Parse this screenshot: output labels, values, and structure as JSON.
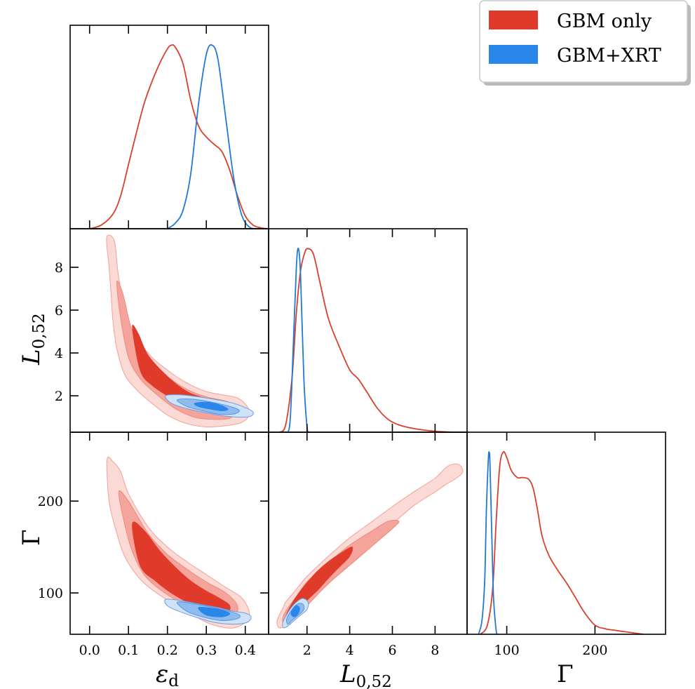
{
  "legend": [
    {
      "label": "GBM only",
      "color": "#e03a2a"
    },
    {
      "label": "GBM+XRT",
      "color": "#2a86e8"
    }
  ],
  "colors": {
    "red_lines": "#d8402c",
    "blue_lines": "#1f7ad8",
    "red_fill": [
      "#fbd9d4",
      "#f4a49a",
      "#e03a2a"
    ],
    "blue_fill": [
      "#d0e2f8",
      "#8fbcef",
      "#2a86e8"
    ]
  },
  "labels": {
    "eps_main": "ε",
    "eps_sub": "d",
    "L_main": "L",
    "L_sub": "0,52",
    "gamma": "Γ"
  },
  "chart_data": [
    {
      "id": "hist-eps",
      "type": "line",
      "xlim": [
        -0.05,
        0.46
      ],
      "xticks": [
        0.0,
        0.1,
        0.2,
        0.3,
        0.4
      ],
      "series": [
        {
          "name": "GBM only",
          "x": [
            0.0,
            0.03,
            0.06,
            0.08,
            0.1,
            0.12,
            0.14,
            0.16,
            0.18,
            0.2,
            0.21,
            0.22,
            0.24,
            0.26,
            0.28,
            0.3,
            0.32,
            0.34,
            0.36,
            0.38,
            0.4,
            0.42,
            0.44,
            0.46
          ],
          "y": [
            0.0,
            0.02,
            0.08,
            0.18,
            0.35,
            0.52,
            0.68,
            0.8,
            0.9,
            0.98,
            1.0,
            0.99,
            0.9,
            0.7,
            0.56,
            0.5,
            0.46,
            0.42,
            0.32,
            0.18,
            0.07,
            0.02,
            0.005,
            0.0
          ]
        },
        {
          "name": "GBM+XRT",
          "x": [
            0.2,
            0.22,
            0.24,
            0.26,
            0.28,
            0.3,
            0.315,
            0.33,
            0.35,
            0.37,
            0.39,
            0.41,
            0.43
          ],
          "y": [
            0.0,
            0.03,
            0.1,
            0.3,
            0.68,
            0.95,
            1.0,
            0.92,
            0.6,
            0.28,
            0.08,
            0.01,
            0.0
          ]
        }
      ]
    },
    {
      "id": "hist-L",
      "type": "line",
      "xlim": [
        0.2,
        9.5
      ],
      "xticks": [
        2,
        4,
        6,
        8
      ],
      "series": [
        {
          "name": "GBM only",
          "x": [
            0.7,
            1.0,
            1.3,
            1.5,
            1.7,
            1.9,
            2.05,
            2.3,
            2.6,
            3.0,
            3.5,
            4.0,
            4.4,
            4.8,
            5.3,
            5.8,
            6.3,
            7.0,
            8.0,
            9.0,
            9.5
          ],
          "y": [
            0.0,
            0.04,
            0.3,
            0.65,
            0.88,
            0.98,
            1.0,
            0.97,
            0.82,
            0.62,
            0.47,
            0.34,
            0.29,
            0.22,
            0.13,
            0.07,
            0.04,
            0.02,
            0.005,
            0.0,
            0.0
          ]
        },
        {
          "name": "GBM+XRT",
          "x": [
            1.0,
            1.2,
            1.35,
            1.5,
            1.6,
            1.7,
            1.85,
            2.0,
            2.1
          ],
          "y": [
            0.0,
            0.05,
            0.45,
            0.9,
            1.0,
            0.85,
            0.3,
            0.03,
            0.0
          ]
        }
      ]
    },
    {
      "id": "hist-gamma",
      "type": "line",
      "xlim": [
        55,
        280
      ],
      "xticks": [
        100,
        200
      ],
      "series": [
        {
          "name": "GBM only",
          "x": [
            70,
            78,
            84,
            88,
            92,
            96,
            100,
            105,
            112,
            118,
            125,
            130,
            135,
            140,
            148,
            158,
            168,
            178,
            188,
            200,
            212,
            225,
            240,
            255
          ],
          "y": [
            0.0,
            0.05,
            0.25,
            0.62,
            0.92,
            1.0,
            0.97,
            0.9,
            0.86,
            0.86,
            0.85,
            0.8,
            0.68,
            0.54,
            0.43,
            0.35,
            0.28,
            0.2,
            0.12,
            0.05,
            0.03,
            0.02,
            0.01,
            0.0
          ]
        },
        {
          "name": "GBM+XRT",
          "x": [
            68,
            72,
            75,
            77,
            79,
            80,
            81,
            83,
            85,
            88,
            90
          ],
          "y": [
            0.0,
            0.08,
            0.3,
            0.7,
            0.95,
            1.0,
            0.93,
            0.55,
            0.2,
            0.02,
            0.0
          ]
        }
      ]
    },
    {
      "id": "contour-L-eps",
      "type": "scatter",
      "xlim": [
        -0.05,
        0.46
      ],
      "ylim": [
        0.3,
        9.8
      ],
      "yticks": [
        2,
        4,
        6,
        8
      ],
      "series": [
        {
          "name": "GBM only",
          "levels": [
            {
              "x": [
                0.044,
                0.064,
                0.075,
                0.1,
                0.15,
                0.2,
                0.25,
                0.3,
                0.34,
                0.38,
                0.405,
                0.41,
                0.39,
                0.35,
                0.3,
                0.25,
                0.2,
                0.15,
                0.12,
                0.09,
                0.07,
                0.06,
                0.055,
                0.05,
                0.044
              ],
              "y": [
                9.4,
                9.2,
                7.5,
                5.4,
                4.0,
                3.2,
                2.6,
                2.2,
                2.05,
                1.9,
                1.5,
                1.1,
                0.75,
                0.6,
                0.55,
                0.7,
                1.1,
                1.8,
                2.3,
                3.0,
                4.2,
                5.5,
                6.8,
                8.0,
                9.4
              ]
            },
            {
              "x": [
                0.07,
                0.085,
                0.11,
                0.15,
                0.2,
                0.25,
                0.3,
                0.34,
                0.37,
                0.375,
                0.36,
                0.32,
                0.27,
                0.22,
                0.17,
                0.13,
                0.1,
                0.08,
                0.07
              ],
              "y": [
                7.3,
                6.8,
                5.0,
                3.7,
                2.9,
                2.3,
                1.95,
                1.8,
                1.6,
                1.25,
                0.95,
                0.9,
                1.0,
                1.4,
                2.1,
                2.8,
                3.8,
                5.6,
                7.3
              ]
            },
            {
              "x": [
                0.11,
                0.125,
                0.15,
                0.2,
                0.25,
                0.3,
                0.32,
                0.31,
                0.26,
                0.21,
                0.16,
                0.13,
                0.11
              ],
              "y": [
                5.2,
                4.9,
                3.9,
                2.9,
                2.2,
                1.85,
                1.6,
                1.3,
                1.45,
                1.9,
                2.5,
                3.2,
                5.2
              ]
            }
          ]
        },
        {
          "name": "GBM+XRT",
          "levels": [
            {
              "x": [
                0.195,
                0.23,
                0.28,
                0.33,
                0.37,
                0.4,
                0.42,
                0.415,
                0.39,
                0.35,
                0.3,
                0.25,
                0.21,
                0.195
              ],
              "y": [
                2.0,
                2.05,
                1.95,
                1.8,
                1.65,
                1.45,
                1.25,
                1.05,
                1.0,
                1.05,
                1.2,
                1.4,
                1.65,
                2.0
              ]
            },
            {
              "x": [
                0.225,
                0.26,
                0.3,
                0.34,
                0.37,
                0.385,
                0.37,
                0.33,
                0.29,
                0.25,
                0.225
              ],
              "y": [
                1.8,
                1.85,
                1.75,
                1.6,
                1.45,
                1.3,
                1.15,
                1.15,
                1.3,
                1.5,
                1.8
              ]
            },
            {
              "x": [
                0.27,
                0.3,
                0.33,
                0.35,
                0.355,
                0.34,
                0.31,
                0.28,
                0.27
              ],
              "y": [
                1.65,
                1.7,
                1.6,
                1.45,
                1.35,
                1.3,
                1.38,
                1.5,
                1.65
              ]
            }
          ]
        }
      ]
    },
    {
      "id": "contour-gamma-eps",
      "type": "scatter",
      "xlim": [
        -0.05,
        0.46
      ],
      "ylim": [
        55,
        275
      ],
      "xticks": [
        0.0,
        0.1,
        0.2,
        0.3,
        0.4
      ],
      "yticks": [
        100,
        200
      ],
      "series": [
        {
          "name": "GBM only",
          "levels": [
            {
              "x": [
                0.045,
                0.06,
                0.08,
                0.1,
                0.15,
                0.2,
                0.25,
                0.3,
                0.35,
                0.39,
                0.41,
                0.405,
                0.38,
                0.35,
                0.3,
                0.25,
                0.2,
                0.15,
                0.12,
                0.09,
                0.07,
                0.05,
                0.045
              ],
              "y": [
                245,
                243,
                232,
                208,
                172,
                150,
                134,
                120,
                106,
                95,
                80,
                70,
                63,
                62,
                68,
                80,
                92,
                107,
                120,
                140,
                165,
                200,
                245
              ]
            },
            {
              "x": [
                0.075,
                0.1,
                0.15,
                0.2,
                0.25,
                0.3,
                0.35,
                0.38,
                0.37,
                0.33,
                0.28,
                0.23,
                0.18,
                0.14,
                0.11,
                0.09,
                0.075
              ],
              "y": [
                210,
                200,
                165,
                142,
                126,
                112,
                100,
                86,
                73,
                70,
                78,
                90,
                104,
                120,
                145,
                175,
                210
              ]
            },
            {
              "x": [
                0.11,
                0.14,
                0.18,
                0.22,
                0.26,
                0.3,
                0.33,
                0.36,
                0.35,
                0.31,
                0.26,
                0.21,
                0.17,
                0.13,
                0.11
              ],
              "y": [
                175,
                168,
                146,
                128,
                113,
                102,
                95,
                86,
                76,
                78,
                88,
                100,
                113,
                130,
                175
              ]
            }
          ]
        },
        {
          "name": "GBM+XRT",
          "levels": [
            {
              "x": [
                0.195,
                0.23,
                0.28,
                0.33,
                0.37,
                0.4,
                0.415,
                0.405,
                0.37,
                0.32,
                0.27,
                0.23,
                0.2,
                0.195
              ],
              "y": [
                93,
                92,
                88,
                84,
                80,
                78,
                74,
                68,
                66,
                68,
                74,
                80,
                86,
                93
              ]
            },
            {
              "x": [
                0.225,
                0.27,
                0.32,
                0.36,
                0.385,
                0.38,
                0.34,
                0.29,
                0.25,
                0.225
              ],
              "y": [
                90,
                88,
                84,
                80,
                76,
                72,
                70,
                74,
                80,
                90
              ]
            },
            {
              "x": [
                0.28,
                0.32,
                0.35,
                0.36,
                0.34,
                0.3,
                0.28
              ],
              "y": [
                84,
                83,
                80,
                77,
                74,
                76,
                84
              ]
            }
          ]
        }
      ]
    },
    {
      "id": "contour-gamma-L",
      "type": "scatter",
      "xlim": [
        0.2,
        9.5
      ],
      "ylim": [
        55,
        275
      ],
      "xticks": [
        2,
        4,
        6,
        8
      ],
      "series": [
        {
          "name": "GBM only",
          "levels": [
            {
              "x": [
                0.9,
                1.0,
                1.5,
                2.0,
                3.0,
                4.0,
                5.0,
                6.0,
                7.0,
                8.0,
                8.6,
                9.1,
                9.3,
                9.0,
                8.5,
                8.0,
                7.0,
                6.0,
                5.0,
                4.0,
                3.0,
                2.0,
                1.5,
                1.0,
                0.7,
                0.6,
                0.9
              ],
              "y": [
                85,
                90,
                104,
                118,
                140,
                160,
                177,
                194,
                210,
                225,
                238,
                240,
                232,
                225,
                218,
                210,
                195,
                175,
                155,
                135,
                110,
                88,
                74,
                65,
                62,
                70,
                85
              ]
            },
            {
              "x": [
                1.0,
                1.5,
                2.0,
                3.0,
                4.0,
                5.0,
                5.8,
                6.3,
                6.0,
                5.0,
                4.0,
                3.0,
                2.0,
                1.5,
                1.0,
                0.85,
                1.0
              ],
              "y": [
                80,
                96,
                112,
                133,
                152,
                167,
                178,
                178,
                170,
                150,
                130,
                110,
                86,
                72,
                66,
                70,
                80
              ]
            },
            {
              "x": [
                1.1,
                1.5,
                2.0,
                2.5,
                3.0,
                3.5,
                4.1,
                4.0,
                3.5,
                3.0,
                2.5,
                2.0,
                1.5,
                1.1,
                1.0,
                1.1
              ],
              "y": [
                80,
                96,
                111,
                124,
                134,
                142,
                150,
                140,
                128,
                116,
                103,
                92,
                78,
                70,
                73,
                80
              ]
            }
          ]
        },
        {
          "name": "GBM+XRT",
          "levels": [
            {
              "x": [
                0.9,
                1.2,
                1.5,
                1.8,
                2.05,
                2.0,
                1.7,
                1.4,
                1.1,
                0.9,
                0.85,
                0.9
              ],
              "y": [
                70,
                82,
                90,
                94,
                90,
                82,
                76,
                70,
                64,
                62,
                65,
                70
              ]
            },
            {
              "x": [
                1.05,
                1.3,
                1.55,
                1.8,
                1.85,
                1.6,
                1.3,
                1.1,
                1.05
              ],
              "y": [
                72,
                82,
                88,
                88,
                82,
                76,
                70,
                66,
                72
              ]
            },
            {
              "x": [
                1.25,
                1.45,
                1.65,
                1.6,
                1.4,
                1.25
              ],
              "y": [
                78,
                86,
                84,
                78,
                74,
                78
              ]
            }
          ]
        }
      ]
    }
  ]
}
